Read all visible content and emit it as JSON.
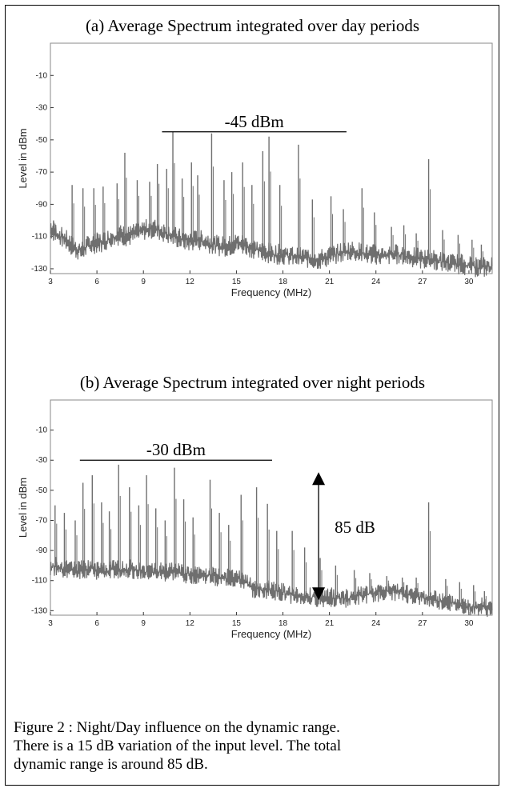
{
  "chart_data": [
    {
      "type": "line",
      "title": "(a) Average Spectrum integrated over day periods",
      "xlabel": "Frequency (MHz)",
      "ylabel": "Level in dBm",
      "xlim": [
        3,
        31.5
      ],
      "ylim": [
        -133,
        10
      ],
      "xticks": [
        3,
        6,
        9,
        12,
        15,
        18,
        21,
        24,
        27,
        30
      ],
      "yticks": [
        -10,
        -30,
        -50,
        -70,
        -90,
        -110,
        -130
      ],
      "xtick_labels": [
        "3",
        "6",
        "9",
        "12",
        "15",
        "18",
        "21",
        "24",
        "27",
        "30"
      ],
      "ytick_labels": [
        "-10",
        "-30",
        "-50",
        "-70",
        "-90",
        "-110",
        "-130"
      ],
      "series": [
        {
          "x": [
            3,
            3.5,
            4,
            4.5,
            5,
            5.5,
            6,
            6.5,
            7,
            7.5,
            8,
            8.5,
            9,
            9.5,
            10,
            10.5,
            11,
            11.5,
            12,
            12.5,
            13,
            13.5,
            14,
            14.5,
            15,
            15.5,
            16,
            16.5,
            17,
            17.5,
            18,
            18.5,
            19,
            19.5,
            20,
            20.5,
            21,
            21.5,
            22,
            22.5,
            23,
            23.5,
            24,
            24.5,
            25,
            25.5,
            26,
            26.5,
            27,
            27.5,
            28,
            28.5,
            29,
            29.5,
            30,
            30.5,
            31,
            31.5
          ],
          "y": [
            -105,
            -109,
            -112,
            -117,
            -119,
            -115,
            -114,
            -113,
            -110,
            -109,
            -110,
            -108,
            -106,
            -105,
            -106,
            -108,
            -110,
            -112,
            -113,
            -112,
            -113,
            -115,
            -116,
            -116,
            -114,
            -115,
            -117,
            -119,
            -120,
            -121,
            -121,
            -122,
            -123,
            -123,
            -124,
            -124,
            -122,
            -121,
            -119,
            -119,
            -120,
            -121,
            -121,
            -122,
            -121,
            -121,
            -122,
            -123,
            -124,
            -124,
            -125,
            -126,
            -127,
            -127,
            -128,
            -129,
            -129,
            -128
          ]
        }
      ],
      "peaks": [
        {
          "x": 3.2,
          "y": -100
        },
        {
          "x": 4.4,
          "y": -78
        },
        {
          "x": 5.1,
          "y": -80
        },
        {
          "x": 5.8,
          "y": -80
        },
        {
          "x": 6.4,
          "y": -79
        },
        {
          "x": 7.3,
          "y": -77
        },
        {
          "x": 7.8,
          "y": -58
        },
        {
          "x": 8.6,
          "y": -75
        },
        {
          "x": 9.4,
          "y": -76
        },
        {
          "x": 9.9,
          "y": -65
        },
        {
          "x": 10.5,
          "y": -68
        },
        {
          "x": 10.9,
          "y": -45
        },
        {
          "x": 11.5,
          "y": -74
        },
        {
          "x": 12.1,
          "y": -64
        },
        {
          "x": 12.5,
          "y": -72
        },
        {
          "x": 13.4,
          "y": -46
        },
        {
          "x": 14.2,
          "y": -75
        },
        {
          "x": 14.7,
          "y": -70
        },
        {
          "x": 15.4,
          "y": -64
        },
        {
          "x": 16.0,
          "y": -78
        },
        {
          "x": 16.7,
          "y": -57
        },
        {
          "x": 17.1,
          "y": -48
        },
        {
          "x": 17.8,
          "y": -78
        },
        {
          "x": 19.0,
          "y": -53
        },
        {
          "x": 19.9,
          "y": -87
        },
        {
          "x": 21.1,
          "y": -85
        },
        {
          "x": 21.9,
          "y": -93
        },
        {
          "x": 23.1,
          "y": -80
        },
        {
          "x": 23.9,
          "y": -95
        },
        {
          "x": 25.0,
          "y": -104
        },
        {
          "x": 25.8,
          "y": -103
        },
        {
          "x": 26.6,
          "y": -108
        },
        {
          "x": 27.4,
          "y": -62
        },
        {
          "x": 28.3,
          "y": -106
        },
        {
          "x": 29.3,
          "y": -109
        },
        {
          "x": 30.2,
          "y": -112
        },
        {
          "x": 30.8,
          "y": -115
        }
      ],
      "annotation": {
        "text": "-45 dBm",
        "y": -45,
        "x_start": 10.2,
        "x_end": 22.1
      }
    },
    {
      "type": "line",
      "title": "(b) Average Spectrum integrated over night periods",
      "xlabel": "Frequency (MHz)",
      "ylabel": "Level in dBm",
      "xlim": [
        3,
        31.5
      ],
      "ylim": [
        -133,
        10
      ],
      "xticks": [
        3,
        6,
        9,
        12,
        15,
        18,
        21,
        24,
        27,
        30
      ],
      "yticks": [
        -10,
        -30,
        -50,
        -70,
        -90,
        -110,
        -130
      ],
      "xtick_labels": [
        "3",
        "6",
        "9",
        "12",
        "15",
        "18",
        "21",
        "24",
        "27",
        "30"
      ],
      "ytick_labels": [
        "-10",
        "-30",
        "-50",
        "-70",
        "-90",
        "-110",
        "-130"
      ],
      "series": [
        {
          "x": [
            3,
            3.5,
            4,
            4.5,
            5,
            5.5,
            6,
            6.5,
            7,
            7.5,
            8,
            8.5,
            9,
            9.5,
            10,
            10.5,
            11,
            11.5,
            12,
            12.5,
            13,
            13.5,
            14,
            14.5,
            15,
            15.5,
            16,
            16.5,
            17,
            17.5,
            18,
            18.5,
            19,
            19.5,
            20,
            20.5,
            21,
            21.5,
            22,
            22.5,
            23,
            23.5,
            24,
            24.5,
            25,
            25.5,
            26,
            26.5,
            27,
            27.5,
            28,
            28.5,
            29,
            29.5,
            30,
            30.5,
            31,
            31.5
          ],
          "y": [
            -100,
            -101,
            -102,
            -103,
            -103,
            -102,
            -103,
            -104,
            -103,
            -102,
            -102,
            -103,
            -104,
            -104,
            -104,
            -105,
            -104,
            -105,
            -106,
            -106,
            -106,
            -107,
            -108,
            -108,
            -109,
            -110,
            -115,
            -116,
            -116,
            -117,
            -118,
            -119,
            -120,
            -121,
            -121,
            -122,
            -121,
            -121,
            -122,
            -121,
            -120,
            -119,
            -118,
            -117,
            -117,
            -118,
            -119,
            -120,
            -121,
            -122,
            -123,
            -124,
            -125,
            -126,
            -127,
            -127,
            -128,
            -128
          ]
        }
      ],
      "peaks": [
        {
          "x": 3.3,
          "y": -60
        },
        {
          "x": 3.9,
          "y": -65
        },
        {
          "x": 4.6,
          "y": -70
        },
        {
          "x": 5.1,
          "y": -45
        },
        {
          "x": 5.7,
          "y": -40
        },
        {
          "x": 6.3,
          "y": -58
        },
        {
          "x": 6.8,
          "y": -64
        },
        {
          "x": 7.4,
          "y": -33
        },
        {
          "x": 8.1,
          "y": -48
        },
        {
          "x": 8.7,
          "y": -60
        },
        {
          "x": 9.2,
          "y": -40
        },
        {
          "x": 9.8,
          "y": -62
        },
        {
          "x": 10.4,
          "y": -70
        },
        {
          "x": 11.0,
          "y": -35
        },
        {
          "x": 11.6,
          "y": -56
        },
        {
          "x": 12.2,
          "y": -68
        },
        {
          "x": 13.3,
          "y": -43
        },
        {
          "x": 13.9,
          "y": -65
        },
        {
          "x": 14.5,
          "y": -73
        },
        {
          "x": 15.3,
          "y": -53
        },
        {
          "x": 16.3,
          "y": -48
        },
        {
          "x": 17.0,
          "y": -59
        },
        {
          "x": 17.6,
          "y": -77
        },
        {
          "x": 18.6,
          "y": -77
        },
        {
          "x": 19.4,
          "y": -88
        },
        {
          "x": 20.4,
          "y": -95
        },
        {
          "x": 21.4,
          "y": -100
        },
        {
          "x": 22.6,
          "y": -103
        },
        {
          "x": 23.6,
          "y": -105
        },
        {
          "x": 24.7,
          "y": -107
        },
        {
          "x": 25.7,
          "y": -108
        },
        {
          "x": 26.6,
          "y": -108
        },
        {
          "x": 27.4,
          "y": -58
        },
        {
          "x": 28.5,
          "y": -109
        },
        {
          "x": 29.4,
          "y": -111
        },
        {
          "x": 30.3,
          "y": -113
        },
        {
          "x": 31.0,
          "y": -117
        }
      ],
      "annotation": {
        "text": "-30 dBm",
        "y": -30,
        "x_start": 4.9,
        "x_end": 17.3
      },
      "range_arrow": {
        "text": "85 dB",
        "x": 20.3,
        "y_top": -38,
        "y_bottom": -123
      }
    }
  ],
  "caption": {
    "line1": "Figure 2 : Night/Day influence on the dynamic range.",
    "line2": "There is a 15 dB variation of the input level. The total",
    "line3": "dynamic range is around 85 dB."
  },
  "colors": {
    "trace": "#6f6f6f",
    "axis": "#333333",
    "text": "#000000"
  }
}
